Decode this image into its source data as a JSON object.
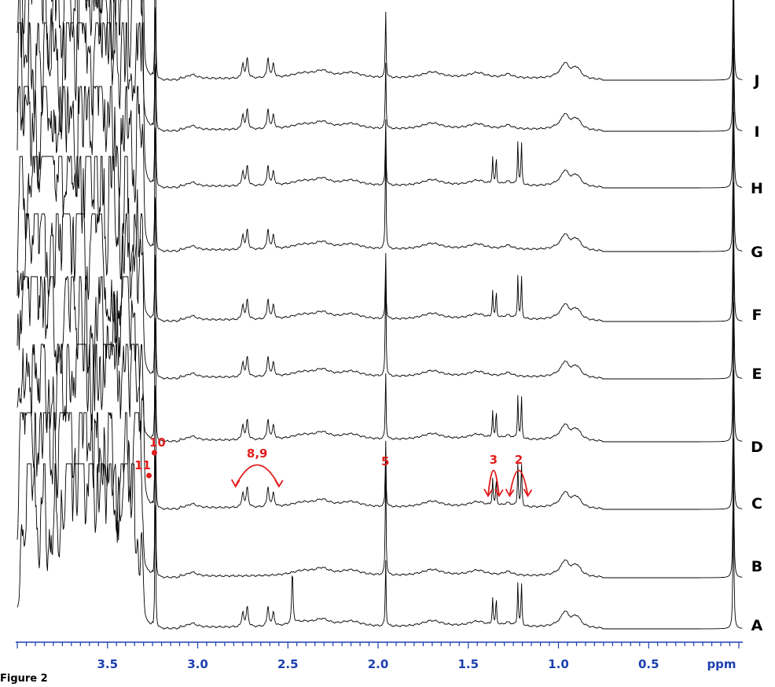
{
  "chart_data": {
    "type": "line",
    "subtype": "stacked NMR spectra",
    "xlabel": "ppm",
    "xlim": [
      4.0,
      0.0
    ],
    "x_reversed": true,
    "xticks": [
      3.5,
      3.0,
      2.5,
      2.0,
      1.5,
      1.0,
      0.5
    ],
    "xtick_labels": [
      "3.5",
      "3.0",
      "2.5",
      "2.0",
      "1.5",
      "1.0",
      "0.5"
    ],
    "series": [
      {
        "name": "J",
        "variant": 0
      },
      {
        "name": "I",
        "variant": 1
      },
      {
        "name": "H",
        "variant": 2
      },
      {
        "name": "G",
        "variant": 3
      },
      {
        "name": "F",
        "variant": 4
      },
      {
        "name": "E",
        "variant": 5
      },
      {
        "name": "D",
        "variant": 6
      },
      {
        "name": "C",
        "variant": 7
      },
      {
        "name": "B",
        "variant": 8
      },
      {
        "name": "A",
        "variant": 9
      }
    ],
    "annotations": [
      {
        "label": "10",
        "x": 3.24,
        "kind": "dot"
      },
      {
        "label": "11",
        "x": 3.27,
        "kind": "dot"
      },
      {
        "label": "8,9",
        "x": 2.67,
        "kind": "double-arrow",
        "from": 2.79,
        "to": 2.55
      },
      {
        "label": "5",
        "x": 1.96,
        "kind": "text"
      },
      {
        "label": "3",
        "x": 1.36,
        "kind": "double-arrow",
        "from": 1.39,
        "to": 1.33
      },
      {
        "label": "2",
        "x": 1.22,
        "kind": "double-arrow",
        "from": 1.27,
        "to": 1.17
      }
    ],
    "colors": {
      "trace": "#000000",
      "axis": "#1c3fb0",
      "annotation": "#e21c1c"
    }
  },
  "caption": "Figure 2"
}
